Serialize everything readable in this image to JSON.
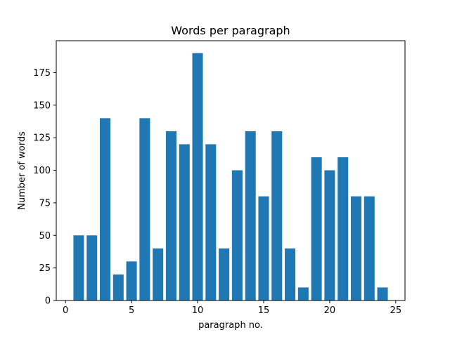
{
  "chart_data": {
    "type": "bar",
    "title": "Words per paragraph",
    "xlabel": "paragraph no.",
    "ylabel": "Number of words",
    "x": [
      1,
      2,
      3,
      4,
      5,
      6,
      7,
      8,
      9,
      10,
      11,
      12,
      13,
      14,
      15,
      16,
      17,
      18,
      19,
      20,
      21,
      22,
      23,
      24
    ],
    "values": [
      50,
      50,
      140,
      20,
      30,
      140,
      40,
      130,
      120,
      190,
      120,
      40,
      100,
      130,
      80,
      130,
      40,
      10,
      110,
      100,
      110,
      80,
      80,
      10
    ],
    "xlim": [
      -0.7,
      25.7
    ],
    "ylim": [
      0,
      199.5
    ],
    "xticks": [
      0,
      5,
      10,
      15,
      20,
      25
    ],
    "yticks": [
      0,
      25,
      50,
      75,
      100,
      125,
      150,
      175
    ],
    "grid": false,
    "bar_color": "#1f77b4"
  }
}
